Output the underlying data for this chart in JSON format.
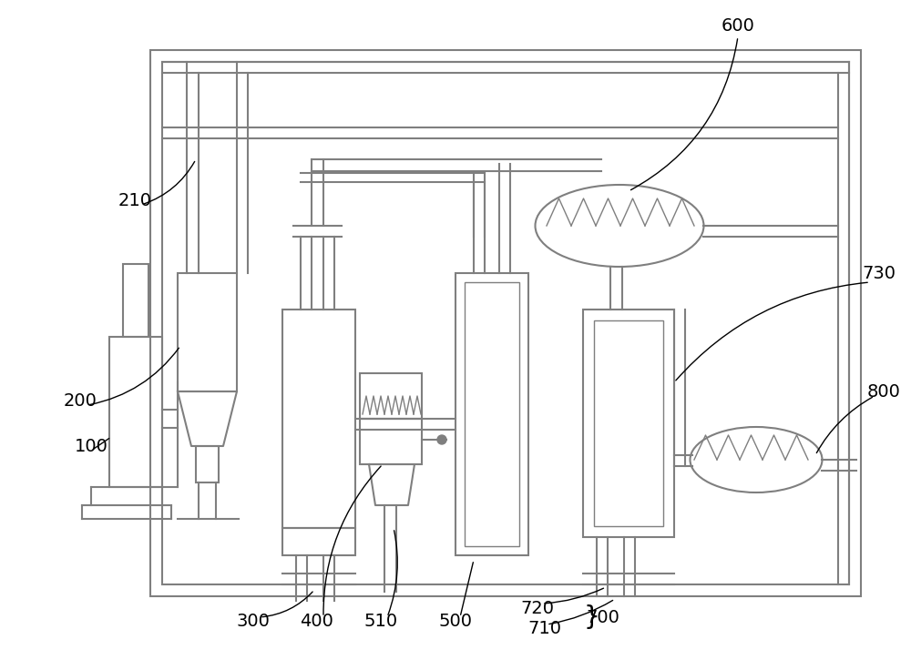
{
  "bg_color": "#ffffff",
  "lc": "#7f7f7f",
  "lw": 1.5,
  "lw_thin": 1.0,
  "figsize": [
    10.0,
    7.36
  ],
  "dpi": 100
}
